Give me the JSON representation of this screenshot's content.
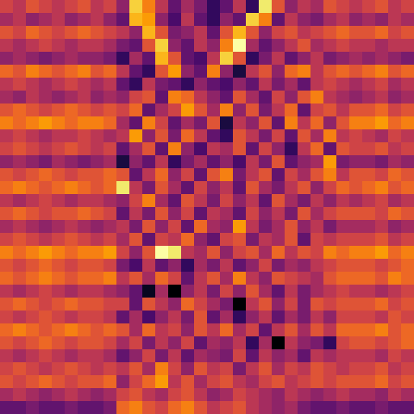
{
  "chart_data": {
    "type": "heatmap",
    "tick_labels": false,
    "cells": [
      [
        0.55,
        0.5,
        0.6,
        0.55,
        0.5,
        0.55,
        0.6,
        0.5,
        0.55,
        0.4,
        0.85,
        0.7,
        0.5,
        0.3,
        0.45,
        0.35,
        0.2,
        0.3,
        0.5,
        0.2,
        0.9,
        0.6,
        0.4,
        0.5,
        0.45,
        0.6,
        0.55,
        0.5,
        0.55,
        0.6,
        0.5,
        0.55
      ],
      [
        0.45,
        0.5,
        0.4,
        0.45,
        0.5,
        0.4,
        0.45,
        0.5,
        0.4,
        0.3,
        0.8,
        0.75,
        0.4,
        0.25,
        0.5,
        0.3,
        0.2,
        0.4,
        0.3,
        0.85,
        0.7,
        0.3,
        0.5,
        0.4,
        0.35,
        0.45,
        0.5,
        0.4,
        0.45,
        0.4,
        0.5,
        0.45
      ],
      [
        0.6,
        0.55,
        0.65,
        0.6,
        0.55,
        0.6,
        0.65,
        0.6,
        0.55,
        0.5,
        0.4,
        0.8,
        0.6,
        0.35,
        0.4,
        0.5,
        0.3,
        0.6,
        0.8,
        0.6,
        0.4,
        0.55,
        0.6,
        0.5,
        0.55,
        0.6,
        0.65,
        0.6,
        0.6,
        0.65,
        0.55,
        0.6
      ],
      [
        0.5,
        0.45,
        0.5,
        0.55,
        0.5,
        0.45,
        0.5,
        0.5,
        0.45,
        0.35,
        0.3,
        0.6,
        0.85,
        0.4,
        0.3,
        0.5,
        0.4,
        0.7,
        0.95,
        0.45,
        0.3,
        0.4,
        0.5,
        0.6,
        0.45,
        0.5,
        0.55,
        0.5,
        0.5,
        0.45,
        0.5,
        0.5
      ],
      [
        0.4,
        0.45,
        0.4,
        0.35,
        0.4,
        0.45,
        0.4,
        0.4,
        0.35,
        0.2,
        0.45,
        0.3,
        0.8,
        0.6,
        0.3,
        0.25,
        0.5,
        0.85,
        0.6,
        0.2,
        0.35,
        0.5,
        0.3,
        0.4,
        0.5,
        0.35,
        0.4,
        0.45,
        0.4,
        0.45,
        0.4,
        0.35
      ],
      [
        0.65,
        0.6,
        0.7,
        0.65,
        0.6,
        0.65,
        0.7,
        0.6,
        0.65,
        0.5,
        0.3,
        0.2,
        0.6,
        0.75,
        0.4,
        0.3,
        0.7,
        0.4,
        0.15,
        0.5,
        0.6,
        0.4,
        0.65,
        0.7,
        0.5,
        0.6,
        0.65,
        0.6,
        0.65,
        0.7,
        0.6,
        0.65
      ],
      [
        0.5,
        0.55,
        0.5,
        0.45,
        0.5,
        0.55,
        0.5,
        0.45,
        0.5,
        0.3,
        0.2,
        0.5,
        0.35,
        0.3,
        0.2,
        0.4,
        0.3,
        0.25,
        0.4,
        0.3,
        0.5,
        0.35,
        0.45,
        0.3,
        0.5,
        0.55,
        0.5,
        0.45,
        0.5,
        0.55,
        0.45,
        0.5
      ],
      [
        0.45,
        0.4,
        0.5,
        0.45,
        0.4,
        0.45,
        0.5,
        0.4,
        0.45,
        0.4,
        0.55,
        0.6,
        0.3,
        0.7,
        0.65,
        0.5,
        0.4,
        0.3,
        0.6,
        0.45,
        0.3,
        0.55,
        0.4,
        0.6,
        0.7,
        0.5,
        0.45,
        0.4,
        0.45,
        0.5,
        0.4,
        0.45
      ],
      [
        0.6,
        0.65,
        0.6,
        0.55,
        0.6,
        0.65,
        0.6,
        0.55,
        0.6,
        0.55,
        0.65,
        0.3,
        0.45,
        0.55,
        0.75,
        0.6,
        0.45,
        0.7,
        0.4,
        0.6,
        0.35,
        0.5,
        0.65,
        0.3,
        0.55,
        0.6,
        0.5,
        0.6,
        0.6,
        0.65,
        0.55,
        0.6
      ],
      [
        0.7,
        0.65,
        0.7,
        0.75,
        0.7,
        0.65,
        0.7,
        0.7,
        0.65,
        0.45,
        0.3,
        0.7,
        0.55,
        0.3,
        0.45,
        0.35,
        0.6,
        0.15,
        0.5,
        0.4,
        0.6,
        0.3,
        0.7,
        0.5,
        0.65,
        0.4,
        0.6,
        0.7,
        0.7,
        0.75,
        0.65,
        0.7
      ],
      [
        0.5,
        0.55,
        0.5,
        0.45,
        0.5,
        0.5,
        0.55,
        0.5,
        0.45,
        0.5,
        0.75,
        0.4,
        0.6,
        0.35,
        0.65,
        0.5,
        0.3,
        0.2,
        0.6,
        0.5,
        0.35,
        0.55,
        0.3,
        0.6,
        0.45,
        0.7,
        0.5,
        0.55,
        0.5,
        0.45,
        0.55,
        0.5
      ],
      [
        0.55,
        0.6,
        0.55,
        0.5,
        0.55,
        0.6,
        0.55,
        0.5,
        0.55,
        0.3,
        0.45,
        0.6,
        0.3,
        0.7,
        0.4,
        0.25,
        0.5,
        0.45,
        0.6,
        0.3,
        0.55,
        0.4,
        0.2,
        0.5,
        0.65,
        0.3,
        0.6,
        0.55,
        0.55,
        0.6,
        0.5,
        0.55
      ],
      [
        0.4,
        0.45,
        0.4,
        0.35,
        0.45,
        0.4,
        0.35,
        0.4,
        0.45,
        0.15,
        0.4,
        0.3,
        0.5,
        0.2,
        0.35,
        0.45,
        0.3,
        0.4,
        0.25,
        0.5,
        0.35,
        0.6,
        0.3,
        0.4,
        0.45,
        0.75,
        0.35,
        0.4,
        0.4,
        0.35,
        0.45,
        0.4
      ],
      [
        0.6,
        0.55,
        0.6,
        0.65,
        0.6,
        0.55,
        0.6,
        0.6,
        0.65,
        0.6,
        0.3,
        0.5,
        0.65,
        0.4,
        0.55,
        0.3,
        0.6,
        0.7,
        0.35,
        0.5,
        0.6,
        0.3,
        0.55,
        0.45,
        0.6,
        0.7,
        0.5,
        0.6,
        0.6,
        0.55,
        0.65,
        0.6
      ],
      [
        0.65,
        0.7,
        0.65,
        0.6,
        0.65,
        0.7,
        0.65,
        0.6,
        0.65,
        0.9,
        0.5,
        0.35,
        0.6,
        0.45,
        0.3,
        0.55,
        0.4,
        0.5,
        0.3,
        0.6,
        0.45,
        0.35,
        0.5,
        0.6,
        0.4,
        0.55,
        0.65,
        0.6,
        0.65,
        0.7,
        0.6,
        0.65
      ],
      [
        0.5,
        0.45,
        0.5,
        0.55,
        0.5,
        0.45,
        0.5,
        0.5,
        0.45,
        0.4,
        0.55,
        0.7,
        0.45,
        0.3,
        0.6,
        0.5,
        0.35,
        0.55,
        0.4,
        0.5,
        0.3,
        0.6,
        0.45,
        0.35,
        0.5,
        0.4,
        0.5,
        0.45,
        0.5,
        0.55,
        0.45,
        0.5
      ],
      [
        0.6,
        0.65,
        0.6,
        0.55,
        0.6,
        0.6,
        0.65,
        0.6,
        0.55,
        0.3,
        0.5,
        0.35,
        0.6,
        0.4,
        0.55,
        0.3,
        0.5,
        0.45,
        0.3,
        0.55,
        0.4,
        0.5,
        0.35,
        0.6,
        0.45,
        0.55,
        0.6,
        0.6,
        0.6,
        0.55,
        0.65,
        0.6
      ],
      [
        0.45,
        0.5,
        0.45,
        0.4,
        0.45,
        0.5,
        0.45,
        0.4,
        0.45,
        0.5,
        0.35,
        0.6,
        0.4,
        0.55,
        0.3,
        0.65,
        0.45,
        0.4,
        0.75,
        0.5,
        0.35,
        0.45,
        0.6,
        0.4,
        0.5,
        0.35,
        0.45,
        0.45,
        0.45,
        0.5,
        0.4,
        0.45
      ],
      [
        0.55,
        0.6,
        0.55,
        0.5,
        0.55,
        0.6,
        0.55,
        0.5,
        0.55,
        0.45,
        0.6,
        0.3,
        0.55,
        0.5,
        0.65,
        0.4,
        0.3,
        0.55,
        0.6,
        0.35,
        0.5,
        0.45,
        0.6,
        0.3,
        0.55,
        0.5,
        0.55,
        0.55,
        0.55,
        0.6,
        0.5,
        0.55
      ],
      [
        0.7,
        0.65,
        0.7,
        0.75,
        0.7,
        0.65,
        0.7,
        0.7,
        0.75,
        0.55,
        0.4,
        0.6,
        0.95,
        0.9,
        0.5,
        0.45,
        0.6,
        0.4,
        0.55,
        0.6,
        0.45,
        0.65,
        0.5,
        0.6,
        0.55,
        0.7,
        0.65,
        0.7,
        0.7,
        0.75,
        0.65,
        0.7
      ],
      [
        0.6,
        0.55,
        0.6,
        0.65,
        0.6,
        0.55,
        0.6,
        0.6,
        0.55,
        0.35,
        0.25,
        0.5,
        0.3,
        0.4,
        0.2,
        0.45,
        0.35,
        0.5,
        0.3,
        0.4,
        0.55,
        0.35,
        0.45,
        0.4,
        0.5,
        0.55,
        0.6,
        0.6,
        0.6,
        0.55,
        0.6,
        0.65
      ],
      [
        0.65,
        0.6,
        0.65,
        0.7,
        0.65,
        0.6,
        0.65,
        0.65,
        0.7,
        0.5,
        0.6,
        0.45,
        0.65,
        0.55,
        0.3,
        0.5,
        0.6,
        0.45,
        0.7,
        0.5,
        0.4,
        0.6,
        0.55,
        0.5,
        0.45,
        0.6,
        0.65,
        0.65,
        0.65,
        0.6,
        0.7,
        0.65
      ],
      [
        0.5,
        0.45,
        0.5,
        0.55,
        0.5,
        0.45,
        0.5,
        0.5,
        0.45,
        0.4,
        0.3,
        0.1,
        0.45,
        0.05,
        0.4,
        0.5,
        0.35,
        0.55,
        0.4,
        0.6,
        0.45,
        0.3,
        0.5,
        0.35,
        0.45,
        0.5,
        0.55,
        0.5,
        0.5,
        0.45,
        0.5,
        0.55
      ],
      [
        0.6,
        0.65,
        0.6,
        0.55,
        0.6,
        0.65,
        0.6,
        0.6,
        0.55,
        0.55,
        0.3,
        0.6,
        0.5,
        0.4,
        0.65,
        0.55,
        0.45,
        0.35,
        0.05,
        0.5,
        0.6,
        0.4,
        0.55,
        0.35,
        0.6,
        0.55,
        0.6,
        0.6,
        0.6,
        0.65,
        0.55,
        0.6
      ],
      [
        0.55,
        0.5,
        0.55,
        0.6,
        0.55,
        0.5,
        0.55,
        0.55,
        0.5,
        0.3,
        0.45,
        0.25,
        0.4,
        0.5,
        0.35,
        0.6,
        0.3,
        0.45,
        0.2,
        0.4,
        0.5,
        0.3,
        0.45,
        0.35,
        0.5,
        0.4,
        0.55,
        0.55,
        0.55,
        0.5,
        0.6,
        0.55
      ],
      [
        0.65,
        0.7,
        0.65,
        0.6,
        0.65,
        0.7,
        0.65,
        0.6,
        0.65,
        0.6,
        0.45,
        0.65,
        0.5,
        0.55,
        0.4,
        0.6,
        0.5,
        0.65,
        0.45,
        0.55,
        0.3,
        0.5,
        0.6,
        0.45,
        0.6,
        0.5,
        0.65,
        0.65,
        0.65,
        0.7,
        0.6,
        0.65
      ],
      [
        0.6,
        0.55,
        0.6,
        0.65,
        0.6,
        0.55,
        0.6,
        0.6,
        0.55,
        0.45,
        0.55,
        0.35,
        0.5,
        0.4,
        0.55,
        0.3,
        0.45,
        0.4,
        0.5,
        0.2,
        0.45,
        0.05,
        0.5,
        0.4,
        0.35,
        0.2,
        0.55,
        0.6,
        0.6,
        0.55,
        0.6,
        0.65
      ],
      [
        0.5,
        0.45,
        0.5,
        0.55,
        0.5,
        0.45,
        0.5,
        0.5,
        0.45,
        0.3,
        0.4,
        0.55,
        0.35,
        0.5,
        0.3,
        0.45,
        0.4,
        0.35,
        0.55,
        0.3,
        0.5,
        0.4,
        0.45,
        0.3,
        0.5,
        0.45,
        0.5,
        0.5,
        0.5,
        0.45,
        0.55,
        0.5
      ],
      [
        0.55,
        0.6,
        0.55,
        0.5,
        0.55,
        0.6,
        0.55,
        0.5,
        0.55,
        0.5,
        0.6,
        0.45,
        0.7,
        0.55,
        0.4,
        0.6,
        0.5,
        0.55,
        0.35,
        0.5,
        0.6,
        0.45,
        0.55,
        0.5,
        0.6,
        0.55,
        0.5,
        0.55,
        0.55,
        0.6,
        0.5,
        0.55
      ],
      [
        0.6,
        0.55,
        0.6,
        0.65,
        0.6,
        0.55,
        0.6,
        0.6,
        0.65,
        0.4,
        0.55,
        0.65,
        0.75,
        0.5,
        0.6,
        0.45,
        0.55,
        0.6,
        0.5,
        0.45,
        0.55,
        0.6,
        0.5,
        0.55,
        0.6,
        0.55,
        0.6,
        0.6,
        0.6,
        0.65,
        0.55,
        0.6
      ],
      [
        0.45,
        0.5,
        0.45,
        0.4,
        0.45,
        0.5,
        0.45,
        0.4,
        0.45,
        0.55,
        0.6,
        0.5,
        0.45,
        0.55,
        0.6,
        0.5,
        0.4,
        0.45,
        0.55,
        0.5,
        0.45,
        0.4,
        0.5,
        0.45,
        0.4,
        0.45,
        0.5,
        0.45,
        0.45,
        0.4,
        0.5,
        0.45
      ],
      [
        0.3,
        0.3,
        0.35,
        0.3,
        0.3,
        0.35,
        0.3,
        0.3,
        0.35,
        0.65,
        0.7,
        0.6,
        0.55,
        0.65,
        0.7,
        0.6,
        0.5,
        0.55,
        0.6,
        0.5,
        0.45,
        0.4,
        0.45,
        0.35,
        0.3,
        0.3,
        0.35,
        0.3,
        0.3,
        0.35,
        0.3,
        0.3
      ]
    ]
  }
}
